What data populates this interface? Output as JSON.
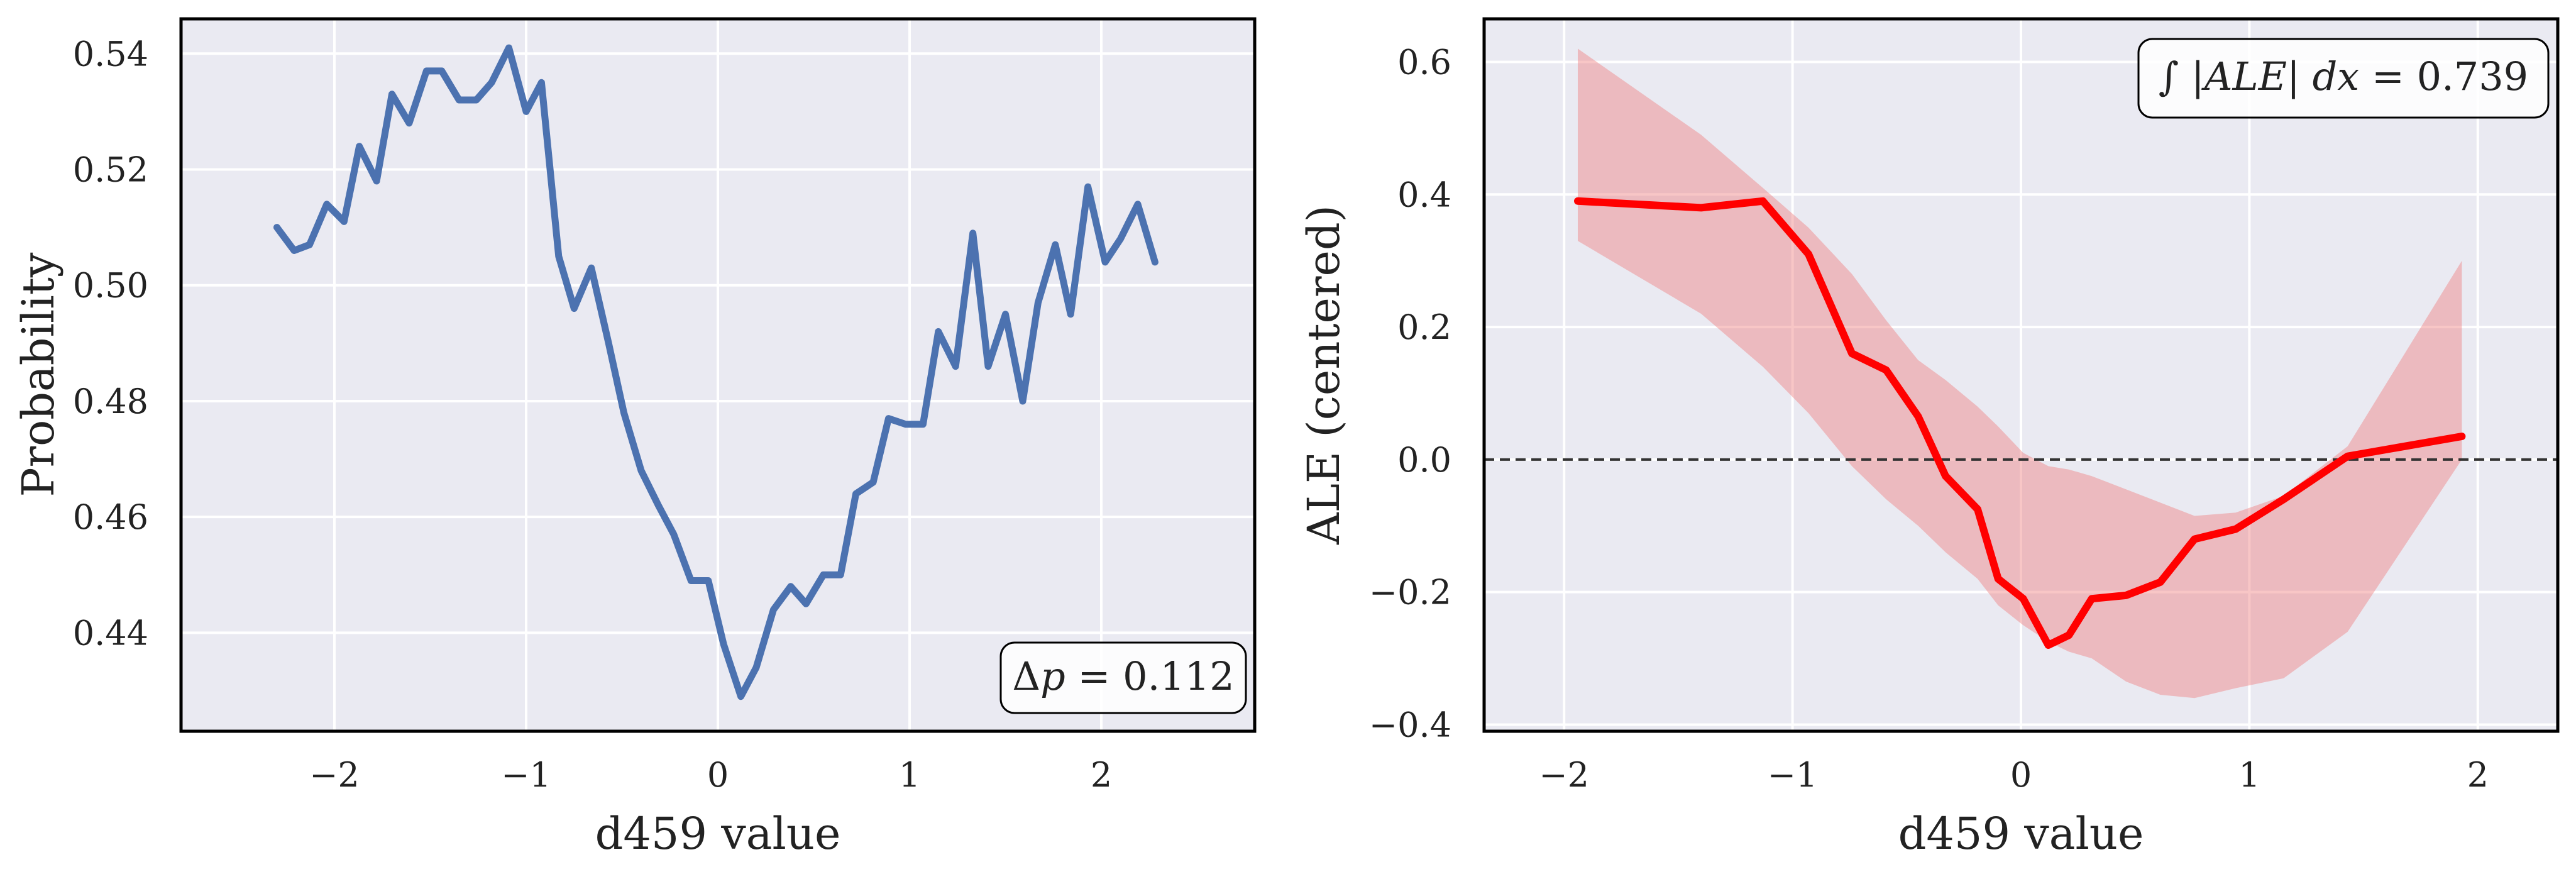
{
  "chart_data": [
    {
      "type": "line",
      "xlabel": "d459 value",
      "ylabel": "Probability",
      "xlim": [
        -2.8,
        2.8
      ],
      "ylim": [
        0.423,
        0.546
      ],
      "xticks": [
        -2,
        -1,
        0,
        1,
        2
      ],
      "xtick_labels": [
        "−2",
        "−1",
        "0",
        "1",
        "2"
      ],
      "yticks": [
        0.44,
        0.46,
        0.48,
        0.5,
        0.52,
        0.54
      ],
      "ytick_labels": [
        "0.44",
        "0.46",
        "0.48",
        "0.50",
        "0.52",
        "0.54"
      ],
      "grid": true,
      "line_color": "#4c72b0",
      "annotation": {
        "text_prefix": "Δ",
        "text_var": "p",
        "text_rest": " = 0.112",
        "location": "bottom-right"
      },
      "series": [
        {
          "x": [
            -2.3,
            -2.21,
            -2.13,
            -2.04,
            -1.95,
            -1.87,
            -1.78,
            -1.7,
            -1.61,
            -1.52,
            -1.44,
            -1.35,
            -1.26,
            -1.18,
            -1.09,
            -1.0,
            -0.92,
            -0.83,
            -0.75,
            -0.66,
            -0.57,
            -0.49,
            -0.4,
            -0.31,
            -0.23,
            -0.14,
            -0.05,
            0.03,
            0.12,
            0.2,
            0.29,
            0.38,
            0.46,
            0.55,
            0.64,
            0.72,
            0.81,
            0.89,
            0.98,
            1.07,
            1.15,
            1.24,
            1.33,
            1.41,
            1.5,
            1.59,
            1.67,
            1.76,
            1.84,
            1.93,
            2.02,
            2.1,
            2.19,
            2.28
          ],
          "y": [
            0.51,
            0.506,
            0.507,
            0.514,
            0.511,
            0.524,
            0.518,
            0.533,
            0.528,
            0.537,
            0.537,
            0.532,
            0.532,
            0.535,
            0.541,
            0.53,
            0.535,
            0.505,
            0.496,
            0.503,
            0.49,
            0.478,
            0.468,
            0.462,
            0.457,
            0.449,
            0.449,
            0.438,
            0.429,
            0.434,
            0.444,
            0.448,
            0.445,
            0.45,
            0.45,
            0.464,
            0.466,
            0.477,
            0.476,
            0.476,
            0.492,
            0.486,
            0.509,
            0.486,
            0.495,
            0.48,
            0.497,
            0.507,
            0.495,
            0.517,
            0.504,
            0.508,
            0.514,
            0.504
          ]
        }
      ]
    },
    {
      "type": "line",
      "xlabel": "d459 value",
      "ylabel": "ALE (centered)",
      "xlim": [
        -2.35,
        2.35
      ],
      "ylim": [
        -0.41,
        0.665
      ],
      "xticks": [
        -2,
        -1,
        0,
        1,
        2
      ],
      "xtick_labels": [
        "−2",
        "−1",
        "0",
        "1",
        "2"
      ],
      "yticks": [
        -0.4,
        -0.2,
        0.0,
        0.2,
        0.4,
        0.6
      ],
      "ytick_labels": [
        "−0.4",
        "−0.2",
        "0.0",
        "0.2",
        "0.4",
        "0.6"
      ],
      "grid": true,
      "line_color": "#ff0000",
      "band_color": "#f08080",
      "zero_line": true,
      "annotation": {
        "text_int": "∫ |",
        "text_var": "ALE",
        "text_mid": "| ",
        "text_var2": "dx",
        "text_rest": " = 0.739",
        "location": "top-right"
      },
      "series": [
        {
          "x": [
            -1.94,
            -1.4,
            -1.13,
            -0.93,
            -0.74,
            -0.59,
            -0.45,
            -0.33,
            -0.19,
            -0.1,
            0.01,
            0.12,
            0.21,
            0.31,
            0.46,
            0.61,
            0.76,
            0.94,
            1.15,
            1.43,
            1.93
          ],
          "y": [
            0.39,
            0.38,
            0.39,
            0.31,
            0.16,
            0.135,
            0.065,
            -0.025,
            -0.075,
            -0.18,
            -0.21,
            -0.28,
            -0.265,
            -0.21,
            -0.205,
            -0.185,
            -0.12,
            -0.105,
            -0.06,
            0.005,
            0.035
          ],
          "lower": [
            0.33,
            0.22,
            0.14,
            0.07,
            -0.01,
            -0.06,
            -0.1,
            -0.14,
            -0.18,
            -0.22,
            -0.25,
            -0.275,
            -0.29,
            -0.3,
            -0.335,
            -0.355,
            -0.36,
            -0.345,
            -0.33,
            -0.26,
            0.0
          ],
          "upper": [
            0.62,
            0.49,
            0.41,
            0.35,
            0.28,
            0.21,
            0.15,
            0.12,
            0.08,
            0.05,
            0.01,
            -0.01,
            -0.015,
            -0.025,
            -0.045,
            -0.065,
            -0.085,
            -0.08,
            -0.055,
            0.02,
            0.3
          ]
        }
      ]
    }
  ]
}
